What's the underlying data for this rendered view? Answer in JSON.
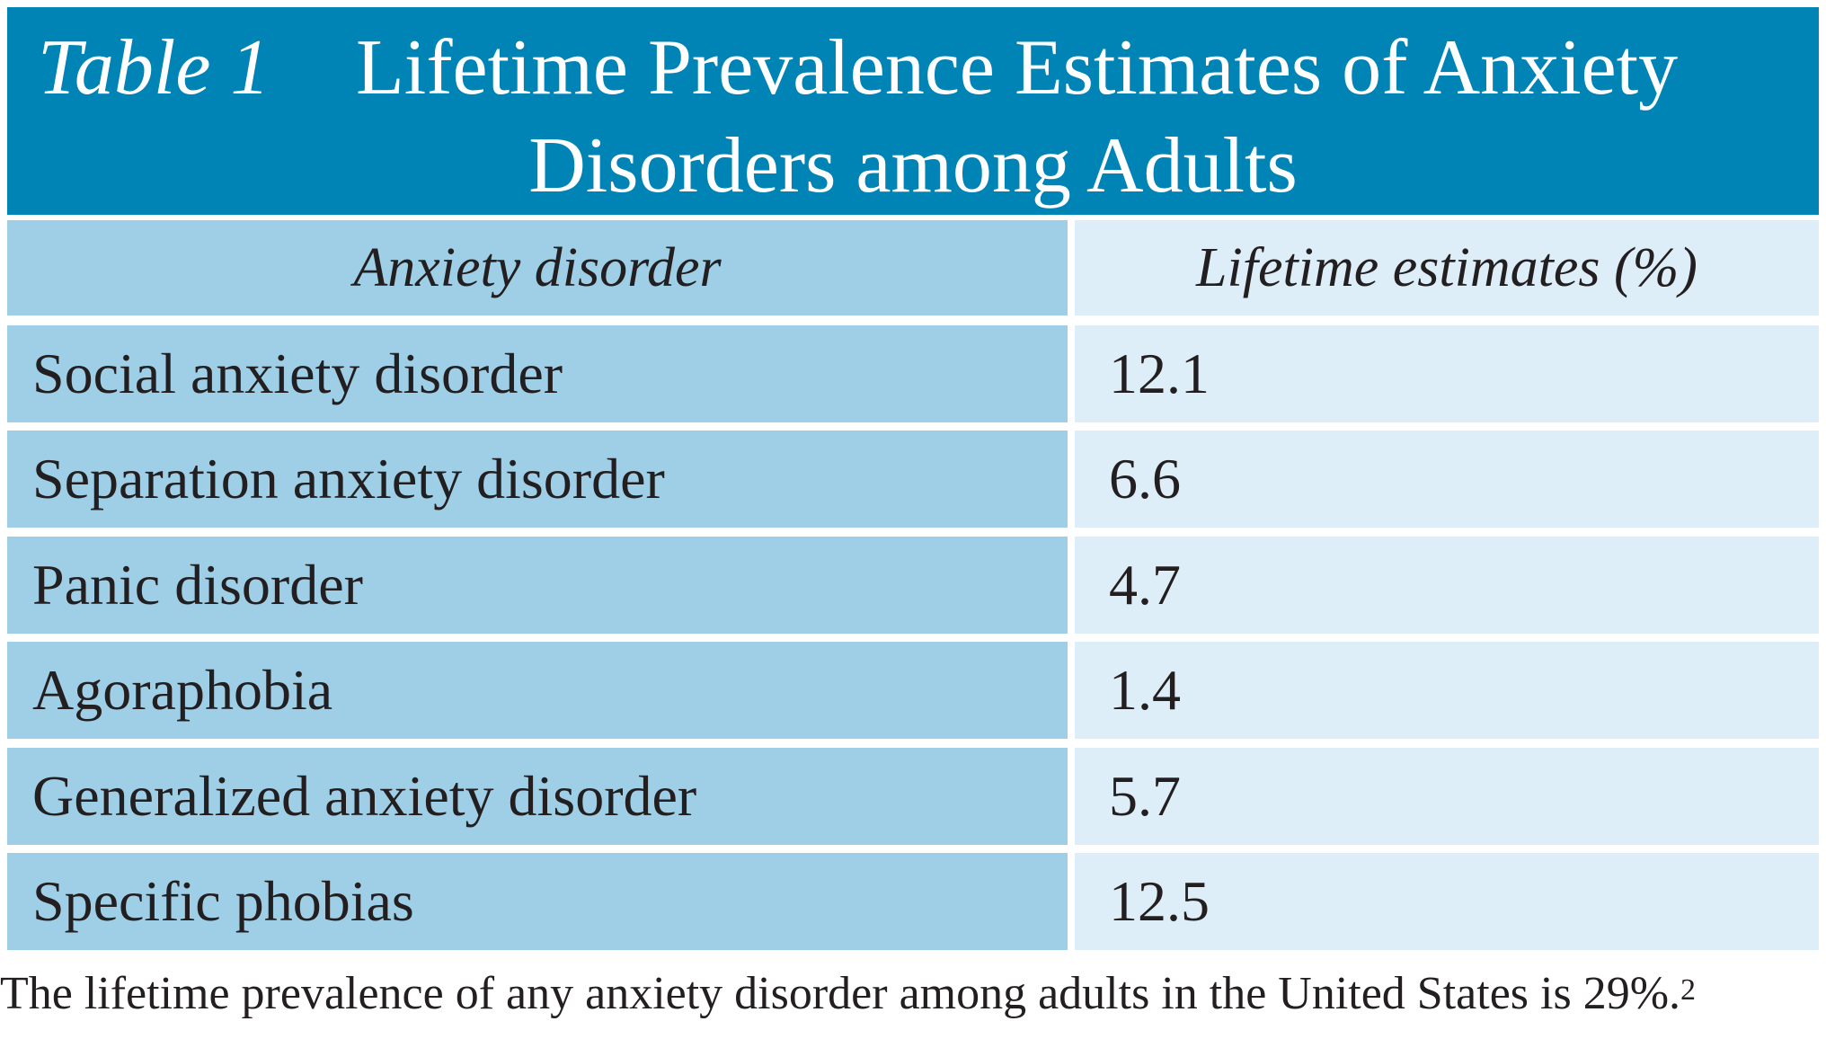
{
  "table": {
    "label": "Table 1",
    "title_line_1": "Lifetime Prevalence Estimates of Anxiety",
    "title_line_2": "Disorders among Adults",
    "headers": {
      "disorder": "Anxiety disorder",
      "estimate": "Lifetime estimates (%)"
    },
    "rows": [
      {
        "disorder": "Social anxiety disorder",
        "estimate": "12.1"
      },
      {
        "disorder": "Separation anxiety disorder",
        "estimate": "6.6"
      },
      {
        "disorder": "Panic disorder",
        "estimate": "4.7"
      },
      {
        "disorder": "Agoraphobia",
        "estimate": "1.4"
      },
      {
        "disorder": "Generalized anxiety disorder",
        "estimate": "5.7"
      },
      {
        "disorder": "Specific phobias",
        "estimate": "12.5"
      }
    ]
  },
  "footnote": {
    "text": "The lifetime prevalence of any anxiety disorder among adults in the United States is 29%.",
    "reference": "2"
  },
  "colors": {
    "title_background": "#0084b6",
    "left_column_background": "#9ecfe7",
    "right_column_background": "#ddeef8",
    "border": "#ffffff",
    "text": "#231f20"
  }
}
